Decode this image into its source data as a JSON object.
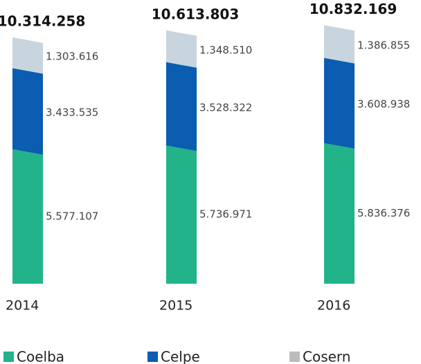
{
  "chart_data": {
    "type": "stacked_bar",
    "categories": [
      "2014",
      "2015",
      "2016"
    ],
    "series": [
      {
        "name": "Coelba",
        "color": "#22b38a",
        "values": [
          5577107,
          5736971,
          5836376
        ],
        "value_labels": [
          "5.577.107",
          "5.736.971",
          "5.836.376"
        ]
      },
      {
        "name": "Celpe",
        "color": "#0a5db0",
        "values": [
          3433535,
          3528322,
          3608938
        ],
        "value_labels": [
          "3.433.535",
          "3.528.322",
          "3.608.938"
        ]
      },
      {
        "name": "Cosern",
        "color": "#c8d5de",
        "values": [
          1303616,
          1348510,
          1386855
        ],
        "value_labels": [
          "1.303.616",
          "1.348.510",
          "1.386.855"
        ]
      }
    ],
    "totals": [
      10314258,
      10613803,
      10832169
    ],
    "total_labels": [
      "10.314.258",
      "10.613.803",
      "10.832.169"
    ]
  }
}
